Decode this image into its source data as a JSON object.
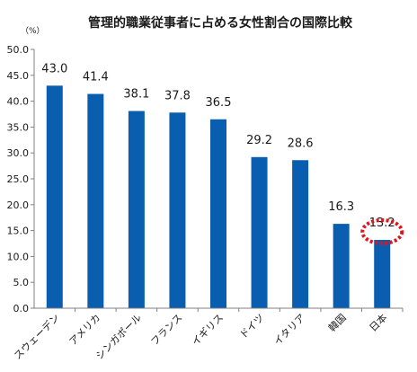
{
  "chart_data": {
    "type": "bar",
    "title": "管理的職業従事者に占める女性割合の国際比較",
    "unit_label": "（%）",
    "categories": [
      "スウェーデン",
      "アメリカ",
      "シンガポール",
      "フランス",
      "イギリス",
      "ドイツ",
      "イタリア",
      "韓国",
      "日本"
    ],
    "values": [
      43.0,
      41.4,
      38.1,
      37.8,
      36.5,
      29.2,
      28.6,
      16.3,
      13.2
    ],
    "value_labels": [
      "43.0",
      "41.4",
      "38.1",
      "37.8",
      "36.5",
      "29.2",
      "28.6",
      "16.3",
      "13.2"
    ],
    "y_ticks": [
      "0.0",
      "5.0",
      "10.0",
      "15.0",
      "20.0",
      "25.0",
      "30.0",
      "35.0",
      "40.0",
      "45.0",
      "50.0"
    ],
    "ylim": [
      0,
      50
    ],
    "xlabel": "",
    "ylabel": "",
    "grid": false,
    "bar_color": "#0a5eb0",
    "highlight_category": "日本",
    "highlight_color": "#e0141e"
  }
}
